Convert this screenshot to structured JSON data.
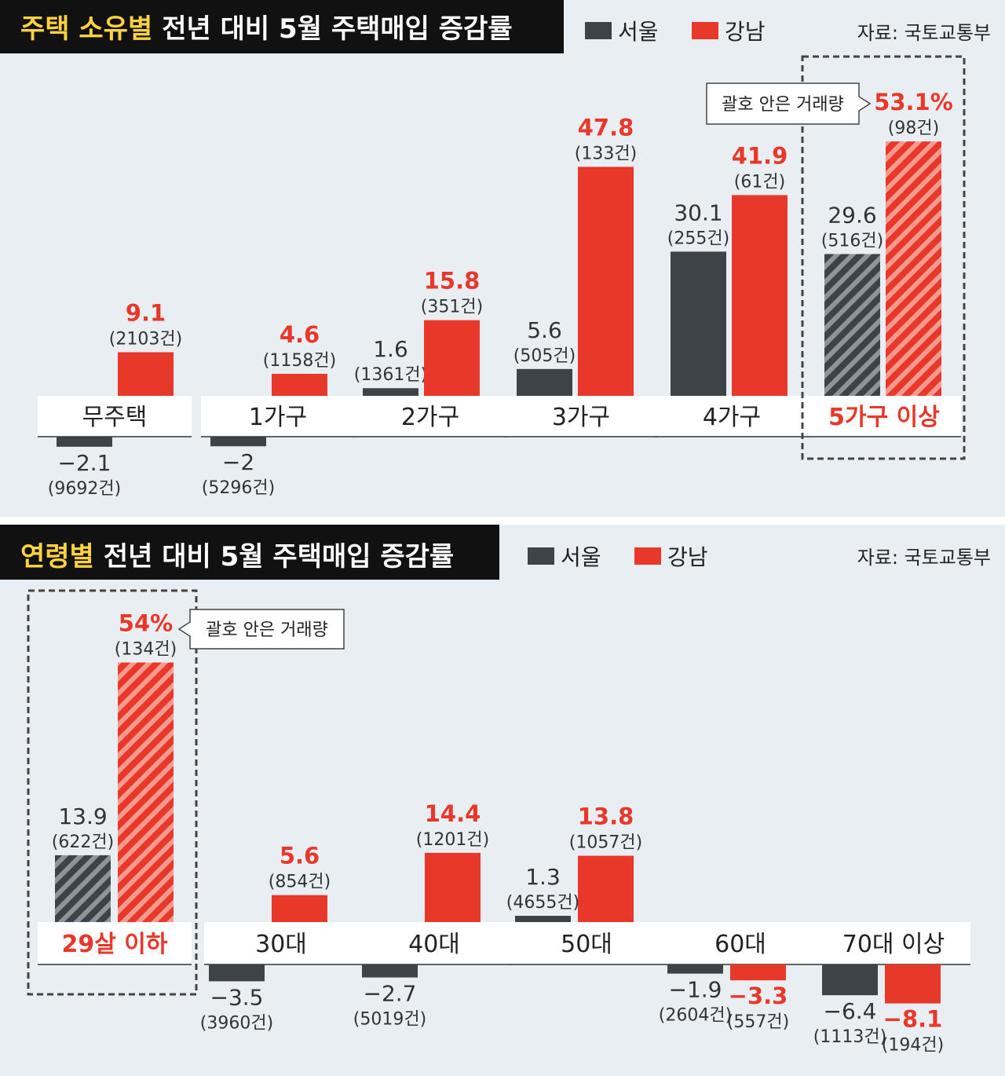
{
  "colors": {
    "seoul": "#3d4347",
    "gangnam": "#e8382a",
    "highlight": "#ffd23f"
  },
  "charts": [
    {
      "title_highlight": "주택 소유별",
      "title_rest": "전년 대비 5월 주택매입 증감률",
      "legend": [
        "서울",
        "강남"
      ],
      "source": "자료: 국토교통부",
      "callout": "괄호 안은 거래량",
      "chart_data": {
        "type": "bar",
        "unit": "%",
        "categories": [
          "무주택",
          "1가구",
          "2가구",
          "3가구",
          "4가구",
          "5가구 이상"
        ],
        "highlight_category": "5가구 이상",
        "series": [
          {
            "name": "서울",
            "values": [
              -2.1,
              -2,
              1.6,
              5.6,
              30.1,
              29.6
            ],
            "labels": [
              "−2.1",
              "−2",
              "1.6",
              "5.6",
              "30.1",
              "29.6"
            ],
            "counts": [
              "(9692건)",
              "(5296건)",
              "(1361건)",
              "(505건)",
              "(255건)",
              "(516건)"
            ]
          },
          {
            "name": "강남",
            "values": [
              9.1,
              4.6,
              15.8,
              47.8,
              41.9,
              53.1
            ],
            "labels": [
              "9.1",
              "4.6",
              "15.8",
              "47.8",
              "41.9",
              "53.1%"
            ],
            "counts": [
              "(2103건)",
              "(1158건)",
              "(351건)",
              "(133건)",
              "(61건)",
              "(98건)"
            ]
          }
        ]
      }
    },
    {
      "title_highlight": "연령별",
      "title_rest": "전년 대비 5월 주택매입 증감률",
      "legend": [
        "서울",
        "강남"
      ],
      "source": "자료: 국토교통부",
      "callout": "괄호 안은 거래량",
      "chart_data": {
        "type": "bar",
        "unit": "%",
        "categories": [
          "29살 이하",
          "30대",
          "40대",
          "50대",
          "60대",
          "70대 이상"
        ],
        "highlight_category": "29살 이하",
        "series": [
          {
            "name": "서울",
            "values": [
              13.9,
              -3.5,
              -2.7,
              1.3,
              -1.9,
              -6.4
            ],
            "labels": [
              "13.9",
              "−3.5",
              "−2.7",
              "1.3",
              "−1.9",
              "−6.4"
            ],
            "counts": [
              "(622건)",
              "(3960건)",
              "(5019건)",
              "(4655건)",
              "(2604건)",
              "(1113건)"
            ]
          },
          {
            "name": "강남",
            "values": [
              54,
              5.6,
              14.4,
              13.8,
              -3.3,
              -8.1
            ],
            "labels": [
              "54%",
              "5.6",
              "14.4",
              "13.8",
              "−3.3",
              "−8.1"
            ],
            "counts": [
              "(134건)",
              "(854건)",
              "(1201건)",
              "(1057건)",
              "(557건)",
              "(194건)"
            ]
          }
        ]
      }
    }
  ]
}
